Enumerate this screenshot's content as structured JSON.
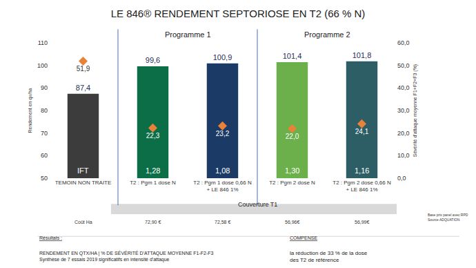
{
  "chart_data": {
    "type": "bar",
    "title": "LE 846® RENDEMENT SEPTORIOSE EN T2 (66 % N)",
    "categories": [
      "TEMOIN NON TRAITE",
      "T2 : Pgm 1 dose N",
      "T2 : Pgm 1 dose 0,66 N + LE 846 1%",
      "T2 : Pgm 2 dose N",
      "T2 : Pgm 2 dose 0,66 N + LE 846 1%"
    ],
    "series": [
      {
        "type": "bar",
        "colors": [
          "#3c3c3c",
          "#0b6e47",
          "#1b3a66",
          "#6bb04a",
          "#2d5e66"
        ],
        "values": [
          87.4,
          99.6,
          100.9,
          101.4,
          101.8
        ],
        "value_labels": [
          "87,4",
          "99,6",
          "100,9",
          "101,4",
          "101,8"
        ]
      },
      {
        "type": "scatter",
        "axis": "y2",
        "color": "#e8823a",
        "marker": "diamond",
        "values": [
          51.9,
          22.3,
          23.2,
          22.0,
          24.1
        ],
        "value_labels": [
          "51,9",
          "22,3",
          "23,2",
          "22,0",
          "24,1"
        ]
      }
    ],
    "y_label": "Rendement en qx/ha",
    "y2_label": "Sévérité d'attaque moyenne F1+F2+F3 (%)",
    "ylim": [
      50,
      110
    ],
    "yticks": [
      50,
      60,
      70,
      80,
      90,
      100,
      110
    ],
    "y2lim": [
      0,
      60
    ],
    "y2ticks": [
      {
        "value": 0,
        "label": "0,0"
      },
      {
        "value": 10,
        "label": "10,0"
      },
      {
        "value": 20,
        "label": "20,0"
      },
      {
        "value": 30,
        "label": "30,0"
      },
      {
        "value": 40,
        "label": "40,0"
      },
      {
        "value": 50,
        "label": "50,0"
      },
      {
        "value": 60,
        "label": "60,0"
      }
    ],
    "data_labels": true,
    "grid": false,
    "groups": [
      {
        "label": "Programme 1",
        "categories": [
          1,
          2
        ]
      },
      {
        "label": "Programme 2",
        "categories": [
          3,
          4
        ]
      }
    ],
    "ift": {
      "label": "IFT",
      "values": [
        null,
        1.28,
        1.08,
        1.3,
        1.16
      ],
      "value_labels": [
        null,
        "1,28",
        "1,08",
        "1,30",
        "1,16"
      ]
    },
    "coverage": {
      "label": "Couverture T1",
      "categories": [
        1,
        2,
        3,
        4
      ]
    },
    "cost": {
      "label": "Coût Ha",
      "values": [
        null,
        72.9,
        72.58,
        56.96,
        56.99
      ],
      "value_labels": [
        null,
        "72,90 €",
        "72,58 €",
        "56,96€",
        "56,99€"
      ]
    },
    "cost_note": [
      "Base prix panel avec RPD",
      "Source ADQUATION"
    ],
    "footer": {
      "heading": "Résultats :",
      "lines": [
        "RENDEMENT EN QTX/HA | % DE SÉVÉRITÉ D'ATTAQUE MOYENNE F1-F2-F3",
        "Synthèse de 7 essais 2019 significatifs en intensité d'attaque"
      ]
    },
    "callout": {
      "heading": "COMPENSE",
      "lines": [
        "la réduction de 33 % de la dose",
        "des T2 de référence"
      ]
    }
  }
}
